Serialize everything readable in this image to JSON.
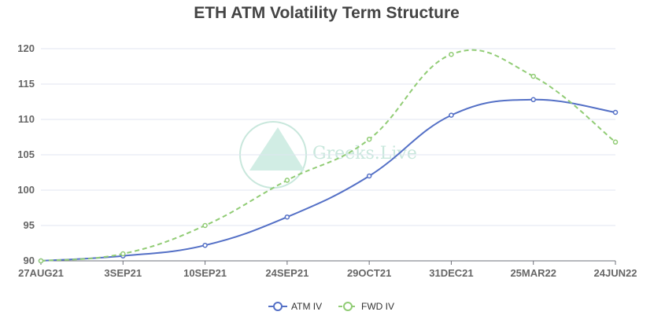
{
  "chart_data": {
    "type": "line",
    "title": "ETH ATM Volatility Term Structure",
    "xlabel": "",
    "ylabel": "",
    "categories": [
      "27AUG21",
      "3SEP21",
      "10SEP21",
      "24SEP21",
      "29OCT21",
      "31DEC21",
      "25MAR22",
      "24JUN22"
    ],
    "ylim": [
      90,
      120
    ],
    "yticks": [
      90,
      95,
      100,
      105,
      110,
      115,
      120
    ],
    "grid": true,
    "legend_position": "bottom-center",
    "series": [
      {
        "name": "ATM IV",
        "values": [
          90.0,
          90.7,
          92.2,
          96.2,
          102.0,
          110.6,
          112.8,
          111.0
        ],
        "color": "#5470c6",
        "style": "solid"
      },
      {
        "name": "FWD IV",
        "values": [
          90.0,
          91.0,
          95.0,
          101.4,
          107.2,
          119.2,
          116.1,
          106.8
        ],
        "color": "#91cc75",
        "style": "dashed"
      }
    ]
  },
  "watermark": {
    "text": "Greeks.Live",
    "color": "#bfe3d6"
  }
}
